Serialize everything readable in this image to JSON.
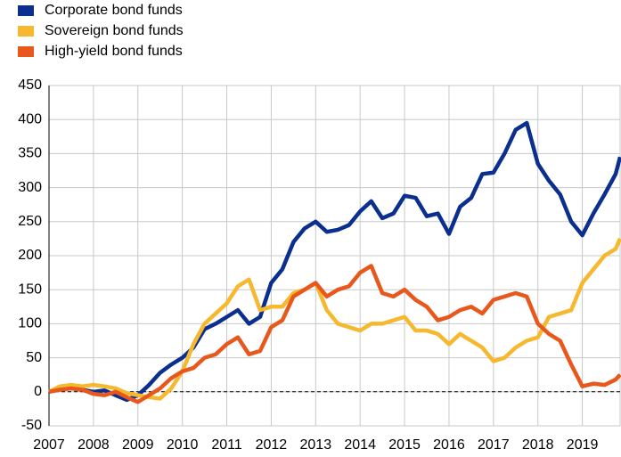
{
  "chart_data": {
    "type": "line",
    "x": [
      2007,
      2007.25,
      2007.5,
      2007.75,
      2008,
      2008.25,
      2008.5,
      2008.75,
      2009,
      2009.25,
      2009.5,
      2009.75,
      2010,
      2010.25,
      2010.5,
      2010.75,
      2011,
      2011.25,
      2011.5,
      2011.75,
      2012,
      2012.25,
      2012.5,
      2012.75,
      2013,
      2013.25,
      2013.5,
      2013.75,
      2014,
      2014.25,
      2014.5,
      2014.75,
      2015,
      2015.25,
      2015.5,
      2015.75,
      2016,
      2016.25,
      2016.5,
      2016.75,
      2017,
      2017.25,
      2017.5,
      2017.75,
      2018,
      2018.25,
      2018.5,
      2018.75,
      2019,
      2019.25,
      2019.5,
      2019.75,
      2019.85
    ],
    "series": [
      {
        "name": "Corporate bond funds",
        "color": "#0b2f8f",
        "values": [
          0,
          5,
          5,
          3,
          0,
          2,
          -5,
          -12,
          -5,
          10,
          28,
          40,
          50,
          65,
          92,
          100,
          110,
          120,
          100,
          110,
          160,
          180,
          220,
          240,
          250,
          235,
          238,
          245,
          265,
          280,
          255,
          262,
          288,
          285,
          258,
          262,
          232,
          272,
          285,
          320,
          322,
          350,
          385,
          395,
          335,
          310,
          290,
          250,
          230,
          262,
          290,
          320,
          345
        ]
      },
      {
        "name": "Sovereign bond funds",
        "color": "#f5b82e",
        "values": [
          0,
          8,
          10,
          8,
          10,
          8,
          5,
          -2,
          -5,
          -8,
          -10,
          5,
          30,
          70,
          100,
          115,
          130,
          155,
          165,
          120,
          125,
          125,
          145,
          150,
          160,
          120,
          100,
          95,
          90,
          100,
          100,
          105,
          110,
          90,
          90,
          85,
          70,
          85,
          75,
          65,
          45,
          50,
          65,
          75,
          80,
          110,
          115,
          120,
          160,
          180,
          200,
          210,
          225
        ]
      },
      {
        "name": "High-yield bond funds",
        "color": "#e8571c",
        "values": [
          0,
          3,
          5,
          3,
          -3,
          -5,
          0,
          -8,
          -15,
          -5,
          5,
          20,
          30,
          35,
          50,
          55,
          70,
          80,
          55,
          60,
          95,
          105,
          140,
          150,
          160,
          140,
          150,
          155,
          175,
          185,
          145,
          140,
          150,
          135,
          125,
          105,
          110,
          120,
          125,
          115,
          135,
          140,
          145,
          140,
          100,
          85,
          75,
          40,
          8,
          12,
          10,
          18,
          25
        ]
      }
    ],
    "xlim": [
      2007,
      2019.85
    ],
    "xticks": [
      2007,
      2008,
      2009,
      2010,
      2011,
      2012,
      2013,
      2014,
      2015,
      2016,
      2017,
      2018,
      2019
    ],
    "ylim": [
      -50,
      450
    ],
    "yticks": [
      -50,
      0,
      50,
      100,
      150,
      200,
      250,
      300,
      350,
      400,
      450
    ],
    "grid": true
  }
}
